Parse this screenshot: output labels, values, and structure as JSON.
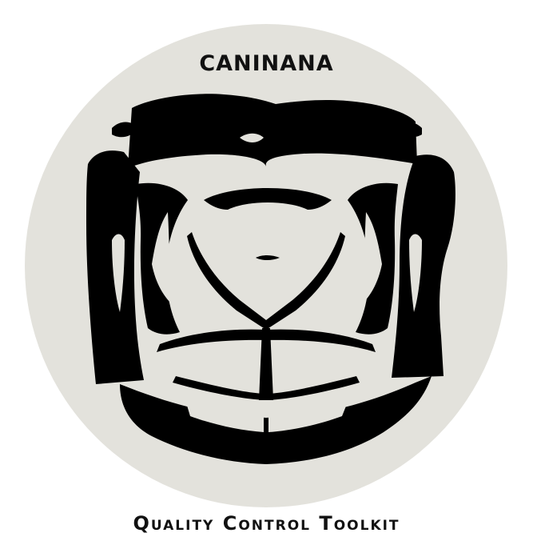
{
  "logo": {
    "brand_name": "CANINANA",
    "tagline": "Quality Control Toolkit",
    "background_color": "#e3e2dc",
    "ink_color": "#000000",
    "icon": "snake-head-scales-icon"
  }
}
